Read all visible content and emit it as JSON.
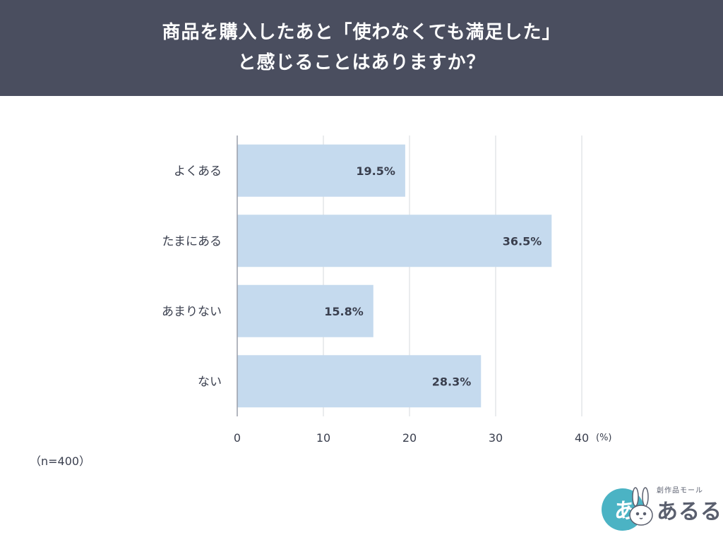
{
  "header": {
    "title_line1": "商品を購入したあと「使わなくても満足した」",
    "title_line2": "と感じることはありますか？"
  },
  "chart_data": {
    "type": "bar",
    "orientation": "horizontal",
    "categories": [
      "よくある",
      "たまにある",
      "あまりない",
      "ない"
    ],
    "values": [
      19.5,
      36.5,
      15.8,
      28.3
    ],
    "value_labels": [
      "19.5%",
      "36.5%",
      "15.8%",
      "28.3%"
    ],
    "xlim": [
      0,
      40
    ],
    "xticks": [
      0,
      10,
      20,
      30,
      40
    ],
    "x_unit": "(%)",
    "grid": true,
    "bar_color": "#c5daee"
  },
  "note": "（n=400）",
  "logo": {
    "text": "あるる",
    "subtext": "創作品モール",
    "badge": "あ"
  }
}
